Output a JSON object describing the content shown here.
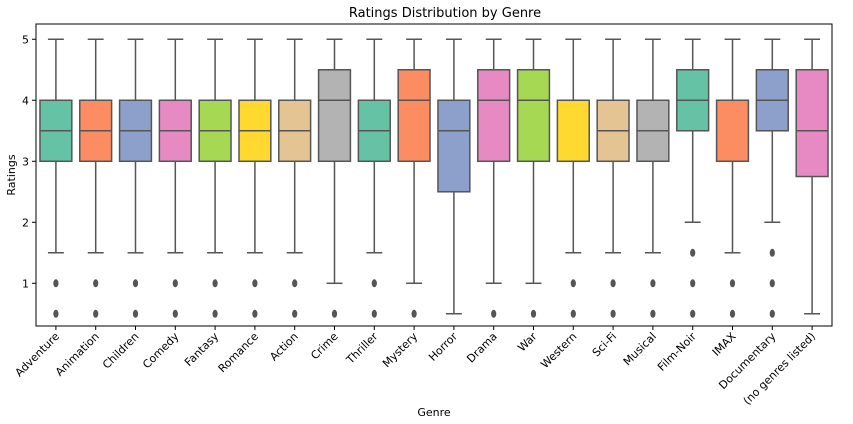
{
  "chart_data": {
    "type": "box",
    "title": "Ratings Distribution by Genre",
    "xlabel": "Genre",
    "ylabel": "Ratings",
    "ylim": [
      0.3,
      5.25
    ],
    "yticks": [
      1,
      2,
      3,
      4,
      5
    ],
    "grid": false,
    "legend": "none",
    "categories": [
      "Adventure",
      "Animation",
      "Children",
      "Comedy",
      "Fantasy",
      "Romance",
      "Action",
      "Crime",
      "Thriller",
      "Mystery",
      "Horror",
      "Drama",
      "War",
      "Western",
      "Sci-Fi",
      "Musical",
      "Film-Noir",
      "IMAX",
      "Documentary",
      "(no genres listed)"
    ],
    "colors": [
      "#66c2a5",
      "#fc8d62",
      "#8da0cb",
      "#e78ac3",
      "#a6d854",
      "#ffd92f",
      "#e5c494",
      "#b3b3b3",
      "#66c2a5",
      "#fc8d62",
      "#8da0cb",
      "#e78ac3",
      "#a6d854",
      "#ffd92f",
      "#e5c494",
      "#b3b3b3",
      "#66c2a5",
      "#fc8d62",
      "#8da0cb",
      "#e78ac3"
    ],
    "boxes": [
      {
        "q1": 3,
        "median": 3.5,
        "q3": 4,
        "whislo": 1.5,
        "whishi": 5,
        "fliers": [
          1,
          0.5
        ]
      },
      {
        "q1": 3,
        "median": 3.5,
        "q3": 4,
        "whislo": 1.5,
        "whishi": 5,
        "fliers": [
          1,
          0.5
        ]
      },
      {
        "q1": 3,
        "median": 3.5,
        "q3": 4,
        "whislo": 1.5,
        "whishi": 5,
        "fliers": [
          1,
          0.5
        ]
      },
      {
        "q1": 3,
        "median": 3.5,
        "q3": 4,
        "whislo": 1.5,
        "whishi": 5,
        "fliers": [
          1,
          0.5
        ]
      },
      {
        "q1": 3,
        "median": 3.5,
        "q3": 4,
        "whislo": 1.5,
        "whishi": 5,
        "fliers": [
          1,
          0.5
        ]
      },
      {
        "q1": 3,
        "median": 3.5,
        "q3": 4,
        "whislo": 1.5,
        "whishi": 5,
        "fliers": [
          1,
          0.5
        ]
      },
      {
        "q1": 3,
        "median": 3.5,
        "q3": 4,
        "whislo": 1.5,
        "whishi": 5,
        "fliers": [
          1,
          0.5
        ]
      },
      {
        "q1": 3,
        "median": 4,
        "q3": 4.5,
        "whislo": 1,
        "whishi": 5,
        "fliers": [
          0.5
        ]
      },
      {
        "q1": 3,
        "median": 3.5,
        "q3": 4,
        "whislo": 1.5,
        "whishi": 5,
        "fliers": [
          1,
          0.5
        ]
      },
      {
        "q1": 3,
        "median": 4,
        "q3": 4.5,
        "whislo": 1,
        "whishi": 5,
        "fliers": [
          0.5
        ]
      },
      {
        "q1": 2.5,
        "median": 3.5,
        "q3": 4,
        "whislo": 0.5,
        "whishi": 5,
        "fliers": []
      },
      {
        "q1": 3,
        "median": 4,
        "q3": 4.5,
        "whislo": 1,
        "whishi": 5,
        "fliers": [
          0.5
        ]
      },
      {
        "q1": 3,
        "median": 4,
        "q3": 4.5,
        "whislo": 1,
        "whishi": 5,
        "fliers": [
          0.5
        ]
      },
      {
        "q1": 3,
        "median": 4,
        "q3": 4,
        "whislo": 1.5,
        "whishi": 5,
        "fliers": [
          1,
          0.5
        ]
      },
      {
        "q1": 3,
        "median": 3.5,
        "q3": 4,
        "whislo": 1.5,
        "whishi": 5,
        "fliers": [
          1,
          0.5
        ]
      },
      {
        "q1": 3,
        "median": 3.5,
        "q3": 4,
        "whislo": 1.5,
        "whishi": 5,
        "fliers": [
          1,
          0.5
        ]
      },
      {
        "q1": 3.5,
        "median": 4,
        "q3": 4.5,
        "whislo": 2,
        "whishi": 5,
        "fliers": [
          1.5,
          1,
          0.5
        ]
      },
      {
        "q1": 3,
        "median": 4,
        "q3": 4,
        "whislo": 1.5,
        "whishi": 5,
        "fliers": [
          1,
          0.5
        ]
      },
      {
        "q1": 3.5,
        "median": 4,
        "q3": 4.5,
        "whislo": 2,
        "whishi": 5,
        "fliers": [
          1.5,
          1,
          0.5
        ]
      },
      {
        "q1": 2.75,
        "median": 3.5,
        "q3": 4.5,
        "whislo": 0.5,
        "whishi": 5,
        "fliers": []
      }
    ]
  }
}
